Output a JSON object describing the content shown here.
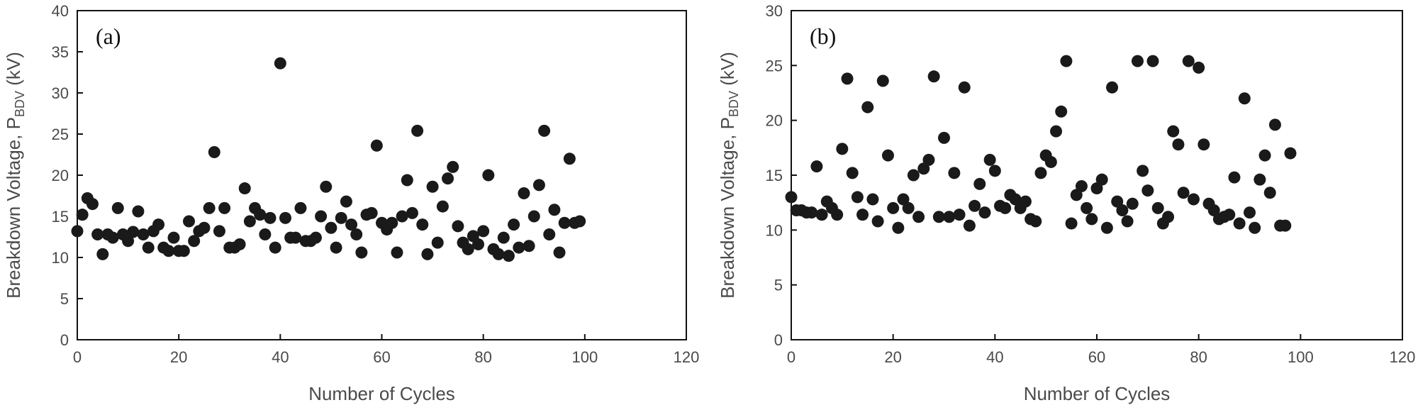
{
  "chart_data": [
    {
      "type": "scatter",
      "panel_label": "(a)",
      "xlabel": "Number of Cycles",
      "ylabel_main": "Breakdown Voltage, P",
      "ylabel_sub": "BDV",
      "ylabel_unit": " (kV)",
      "xlim": [
        0,
        120
      ],
      "ylim": [
        0,
        40
      ],
      "xticks": [
        0,
        20,
        40,
        60,
        80,
        100,
        120
      ],
      "yticks": [
        0,
        5,
        10,
        15,
        20,
        25,
        30,
        35,
        40
      ],
      "grid": false,
      "points": [
        [
          0,
          13.2
        ],
        [
          1,
          15.2
        ],
        [
          2,
          17.2
        ],
        [
          3,
          16.5
        ],
        [
          4,
          12.8
        ],
        [
          5,
          10.4
        ],
        [
          6,
          12.8
        ],
        [
          7,
          12.4
        ],
        [
          8,
          16.0
        ],
        [
          9,
          12.8
        ],
        [
          10,
          12.0
        ],
        [
          11,
          13.1
        ],
        [
          12,
          15.6
        ],
        [
          13,
          12.8
        ],
        [
          14,
          11.2
        ],
        [
          15,
          13.2
        ],
        [
          16,
          14.0
        ],
        [
          17,
          11.2
        ],
        [
          18,
          10.8
        ],
        [
          19,
          12.4
        ],
        [
          20,
          10.8
        ],
        [
          21,
          10.8
        ],
        [
          22,
          14.4
        ],
        [
          23,
          12.0
        ],
        [
          24,
          13.2
        ],
        [
          25,
          13.6
        ],
        [
          26,
          16.0
        ],
        [
          27,
          22.8
        ],
        [
          28,
          13.2
        ],
        [
          29,
          16.0
        ],
        [
          30,
          11.2
        ],
        [
          31,
          11.2
        ],
        [
          32,
          11.6
        ],
        [
          33,
          18.4
        ],
        [
          34,
          14.4
        ],
        [
          35,
          16.0
        ],
        [
          36,
          15.2
        ],
        [
          37,
          12.8
        ],
        [
          38,
          14.8
        ],
        [
          39,
          11.2
        ],
        [
          40,
          33.6
        ],
        [
          41,
          14.8
        ],
        [
          42,
          12.4
        ],
        [
          43,
          12.4
        ],
        [
          44,
          16.0
        ],
        [
          45,
          12.0
        ],
        [
          46,
          12.0
        ],
        [
          47,
          12.4
        ],
        [
          48,
          15.0
        ],
        [
          49,
          18.6
        ],
        [
          50,
          13.6
        ],
        [
          51,
          11.2
        ],
        [
          52,
          14.8
        ],
        [
          53,
          16.8
        ],
        [
          54,
          14.0
        ],
        [
          55,
          12.8
        ],
        [
          56,
          10.6
        ],
        [
          57,
          15.2
        ],
        [
          58,
          15.4
        ],
        [
          59,
          23.6
        ],
        [
          60,
          14.2
        ],
        [
          61,
          13.4
        ],
        [
          62,
          14.2
        ],
        [
          63,
          10.6
        ],
        [
          64,
          15.0
        ],
        [
          65,
          19.4
        ],
        [
          66,
          15.4
        ],
        [
          67,
          25.4
        ],
        [
          68,
          14.0
        ],
        [
          69,
          10.4
        ],
        [
          70,
          18.6
        ],
        [
          71,
          11.8
        ],
        [
          72,
          16.2
        ],
        [
          73,
          19.6
        ],
        [
          74,
          21.0
        ],
        [
          75,
          13.8
        ],
        [
          76,
          11.8
        ],
        [
          77,
          11.0
        ],
        [
          78,
          12.6
        ],
        [
          79,
          11.6
        ],
        [
          80,
          13.2
        ],
        [
          81,
          20.0
        ],
        [
          82,
          11.0
        ],
        [
          83,
          10.4
        ],
        [
          84,
          12.4
        ],
        [
          85,
          10.2
        ],
        [
          86,
          14.0
        ],
        [
          87,
          11.2
        ],
        [
          88,
          17.8
        ],
        [
          89,
          11.4
        ],
        [
          90,
          15.0
        ],
        [
          91,
          18.8
        ],
        [
          92,
          25.4
        ],
        [
          93,
          12.8
        ],
        [
          94,
          15.8
        ],
        [
          95,
          10.6
        ],
        [
          96,
          14.2
        ],
        [
          97,
          22.0
        ],
        [
          98,
          14.2
        ],
        [
          99,
          14.4
        ]
      ]
    },
    {
      "type": "scatter",
      "panel_label": "(b)",
      "xlabel": "Number of Cycles",
      "ylabel_main": "Breakdown Voltage, P",
      "ylabel_sub": "BDV",
      "ylabel_unit": " (kV)",
      "xlim": [
        0,
        120
      ],
      "ylim": [
        0,
        30
      ],
      "xticks": [
        0,
        20,
        40,
        60,
        80,
        100,
        120
      ],
      "yticks": [
        0,
        5,
        10,
        15,
        20,
        25,
        30
      ],
      "grid": false,
      "points": [
        [
          0,
          13.0
        ],
        [
          1,
          11.8
        ],
        [
          2,
          11.8
        ],
        [
          3,
          11.6
        ],
        [
          4,
          11.6
        ],
        [
          5,
          15.8
        ],
        [
          6,
          11.4
        ],
        [
          7,
          12.6
        ],
        [
          8,
          12.0
        ],
        [
          9,
          11.4
        ],
        [
          10,
          17.4
        ],
        [
          11,
          23.8
        ],
        [
          12,
          15.2
        ],
        [
          13,
          13.0
        ],
        [
          14,
          11.4
        ],
        [
          15,
          21.2
        ],
        [
          16,
          12.8
        ],
        [
          17,
          10.8
        ],
        [
          18,
          23.6
        ],
        [
          19,
          16.8
        ],
        [
          20,
          12.0
        ],
        [
          21,
          10.2
        ],
        [
          22,
          12.8
        ],
        [
          23,
          12.0
        ],
        [
          24,
          15.0
        ],
        [
          25,
          11.2
        ],
        [
          26,
          15.6
        ],
        [
          27,
          16.4
        ],
        [
          28,
          24.0
        ],
        [
          29,
          11.2
        ],
        [
          30,
          18.4
        ],
        [
          31,
          11.2
        ],
        [
          32,
          15.2
        ],
        [
          33,
          11.4
        ],
        [
          34,
          23.0
        ],
        [
          35,
          10.4
        ],
        [
          36,
          12.2
        ],
        [
          37,
          14.2
        ],
        [
          38,
          11.6
        ],
        [
          39,
          16.4
        ],
        [
          40,
          15.4
        ],
        [
          41,
          12.2
        ],
        [
          42,
          12.0
        ],
        [
          43,
          13.2
        ],
        [
          44,
          12.8
        ],
        [
          45,
          12.0
        ],
        [
          46,
          12.6
        ],
        [
          47,
          11.0
        ],
        [
          48,
          10.8
        ],
        [
          49,
          15.2
        ],
        [
          50,
          16.8
        ],
        [
          51,
          16.2
        ],
        [
          52,
          19.0
        ],
        [
          53,
          20.8
        ],
        [
          54,
          25.4
        ],
        [
          55,
          10.6
        ],
        [
          56,
          13.2
        ],
        [
          57,
          14.0
        ],
        [
          58,
          12.0
        ],
        [
          59,
          11.0
        ],
        [
          60,
          13.8
        ],
        [
          61,
          14.6
        ],
        [
          62,
          10.2
        ],
        [
          63,
          23.0
        ],
        [
          64,
          12.6
        ],
        [
          65,
          11.8
        ],
        [
          66,
          10.8
        ],
        [
          67,
          12.4
        ],
        [
          68,
          25.4
        ],
        [
          69,
          15.4
        ],
        [
          70,
          13.6
        ],
        [
          71,
          25.4
        ],
        [
          72,
          12.0
        ],
        [
          73,
          10.6
        ],
        [
          74,
          11.2
        ],
        [
          75,
          19.0
        ],
        [
          76,
          17.8
        ],
        [
          77,
          13.4
        ],
        [
          78,
          25.4
        ],
        [
          79,
          12.8
        ],
        [
          80,
          24.8
        ],
        [
          81,
          17.8
        ],
        [
          82,
          12.4
        ],
        [
          83,
          11.8
        ],
        [
          84,
          11.0
        ],
        [
          85,
          11.2
        ],
        [
          86,
          11.4
        ],
        [
          87,
          14.8
        ],
        [
          88,
          10.6
        ],
        [
          89,
          22.0
        ],
        [
          90,
          11.6
        ],
        [
          91,
          10.2
        ],
        [
          92,
          14.6
        ],
        [
          93,
          16.8
        ],
        [
          94,
          13.4
        ],
        [
          95,
          19.6
        ],
        [
          96,
          10.4
        ],
        [
          97,
          10.4
        ],
        [
          98,
          17.0
        ]
      ]
    }
  ]
}
